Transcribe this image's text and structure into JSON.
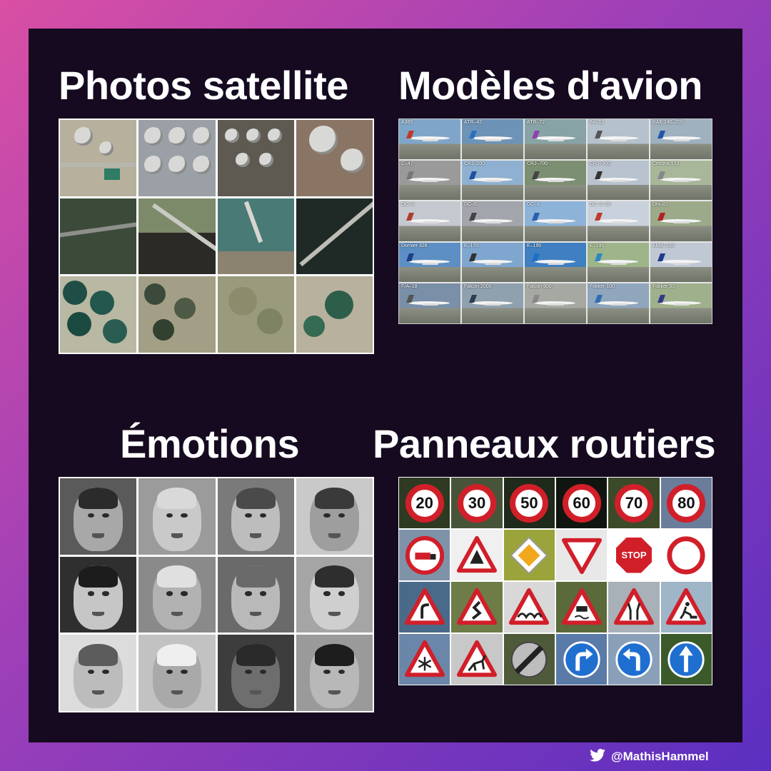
{
  "sections": {
    "satellite": {
      "title": "Photos satellite"
    },
    "planes": {
      "title": "Modèles d'avion",
      "labels": [
        "A380",
        "ATR–42",
        "ATR–72",
        "An–12",
        "BAE 146–200",
        "C–47",
        "CRJ–200",
        "CRJ–700",
        "CRJ–900",
        "Cessna 172",
        "DC–3",
        "DC–6",
        "DC–8",
        "DC–9–30",
        "DH–82",
        "Dornier 328",
        "E–170",
        "E–190",
        "E–195",
        "EMB–120",
        "F/A–18",
        "Falcon 2000",
        "Falcon 900",
        "Fokker 100",
        "Fokker 50"
      ]
    },
    "emotions": {
      "title": "Émotions"
    },
    "signs": {
      "title": "Panneaux routiers",
      "speed_limits": [
        "20",
        "30",
        "50",
        "60",
        "70",
        "80"
      ],
      "stop_text": "STOP"
    }
  },
  "credit": {
    "handle": "@MathisHammel",
    "icon": "twitter-icon"
  }
}
